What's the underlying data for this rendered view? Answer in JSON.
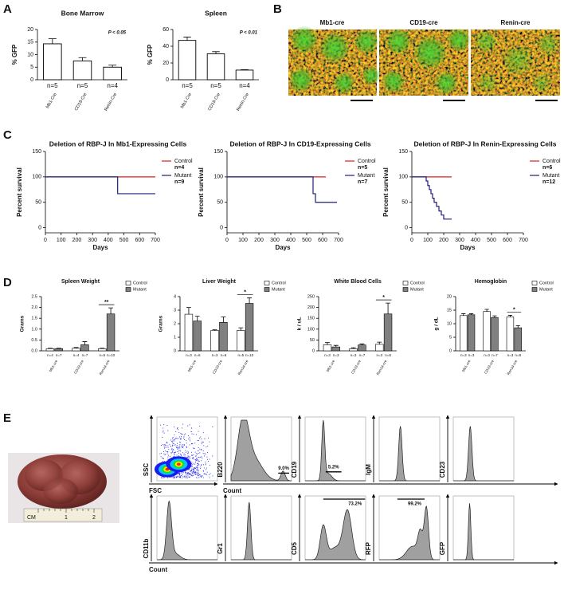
{
  "panel_labels": [
    "A",
    "B",
    "C",
    "D",
    "E"
  ],
  "micrographs": {
    "labels": [
      "Mb1-cre",
      "CD19-cre",
      "Renin-cre"
    ]
  },
  "specimen_photo": {
    "ruler_labels": [
      "CM",
      "1",
      "2"
    ]
  },
  "flow_cytometry": {
    "panels": [
      {
        "y_label": "SSC",
        "x_label": "FSC"
      },
      {
        "y_label": "B220",
        "x_label": "Count",
        "gate_label": "9.0%"
      },
      {
        "y_label": "CD19",
        "gate_label": "5.2%"
      },
      {
        "y_label": "IgM"
      },
      {
        "y_label": "CD23"
      },
      {
        "y_label": "CD11b",
        "x_label": "Count"
      },
      {
        "y_label": "Gr1"
      },
      {
        "y_label": "CD5",
        "gate_label": "73.2%"
      },
      {
        "y_label": "RFP",
        "gate_label": "99.2%"
      },
      {
        "y_label": "GFP"
      }
    ]
  },
  "chart_data": [
    {
      "type": "bar",
      "title": "Bone Marrow",
      "y_label": "% GFP",
      "annotation": "P < 0.05",
      "categories": [
        "Mb1-Cre",
        "CD19-Cre",
        "Renin-Cre"
      ],
      "values": [
        14.3,
        7.5,
        5.0
      ],
      "errors": [
        2.0,
        1.3,
        0.8
      ],
      "n_labels": [
        "n=5",
        "n=5",
        "n=4"
      ],
      "color": "#ffffff",
      "ylim": [
        0,
        20
      ],
      "yticks": [
        0,
        5,
        10,
        15,
        20
      ]
    },
    {
      "type": "bar",
      "title": "Spleen",
      "y_label": "% GFP",
      "annotation": "P < 0.01",
      "categories": [
        "Mb1-Cre",
        "CD19-Cre",
        "Renin-Cre"
      ],
      "values": [
        47,
        31,
        11.5
      ],
      "errors": [
        4,
        2.5,
        0.5
      ],
      "n_labels": [
        "n=5",
        "n=5",
        "n=4"
      ],
      "color": "#ffffff",
      "ylim": [
        0,
        60
      ],
      "yticks": [
        0,
        20,
        40,
        60
      ]
    },
    {
      "type": "line",
      "title": "Deletion of RBP-J In Mb1-Expressing Cells",
      "x_label": "Days",
      "y_label": "Percent survival",
      "xlim": [
        0,
        700
      ],
      "xticks": [
        0,
        100,
        200,
        300,
        400,
        500,
        600,
        700
      ],
      "ylim": [
        -10,
        150
      ],
      "yticks": [
        0,
        50,
        100,
        150
      ],
      "series": [
        {
          "name": "Control",
          "n": "n=4",
          "color": "#e41a1c",
          "x": [
            0,
            700
          ],
          "values": [
            100,
            100
          ]
        },
        {
          "name": "Mutant",
          "n": "n=9",
          "color": "#1f1f7a",
          "x": [
            0,
            460,
            460,
            700
          ],
          "values": [
            100,
            100,
            67,
            67
          ]
        }
      ]
    },
    {
      "type": "line",
      "title": "Deletion of RBP-J In CD19-Expressing Cells",
      "x_label": "Days",
      "y_label": "Percent survival",
      "xlim": [
        0,
        700
      ],
      "xticks": [
        0,
        100,
        200,
        300,
        400,
        500,
        600,
        700
      ],
      "ylim": [
        -10,
        150
      ],
      "yticks": [
        0,
        50,
        100,
        150
      ],
      "series": [
        {
          "name": "Control",
          "n": "n=5",
          "color": "#e41a1c",
          "x": [
            0,
            620
          ],
          "values": [
            100,
            100
          ]
        },
        {
          "name": "Mutant",
          "n": "n=7",
          "color": "#1f1f7a",
          "x": [
            0,
            540,
            540,
            555,
            555,
            690
          ],
          "values": [
            100,
            100,
            67,
            67,
            50,
            50
          ]
        }
      ]
    },
    {
      "type": "line",
      "title": "Deletion of RBP-J In Renin-Expressing Cells",
      "x_label": "Days",
      "y_label": "Percent survival",
      "xlim": [
        0,
        700
      ],
      "xticks": [
        0,
        100,
        200,
        300,
        400,
        500,
        600,
        700
      ],
      "ylim": [
        -10,
        150
      ],
      "yticks": [
        0,
        50,
        100,
        150
      ],
      "series": [
        {
          "name": "Control",
          "n": "n=6",
          "color": "#e41a1c",
          "x": [
            0,
            250
          ],
          "values": [
            100,
            100
          ]
        },
        {
          "name": "Mutant",
          "n": "n=12",
          "color": "#1f1f7a",
          "x": [
            0,
            90,
            90,
            100,
            100,
            110,
            110,
            120,
            120,
            130,
            130,
            140,
            140,
            155,
            155,
            170,
            170,
            185,
            185,
            200,
            200,
            250
          ],
          "values": [
            100,
            100,
            92,
            92,
            83,
            83,
            75,
            75,
            67,
            67,
            58,
            58,
            50,
            50,
            42,
            42,
            33,
            33,
            25,
            25,
            17,
            17
          ]
        }
      ]
    },
    {
      "type": "bar",
      "title": "Spleen Weight",
      "y_label": "Grams",
      "significance": "**",
      "categories": [
        "Mb1-cre",
        "CD19-cre",
        "Ren1d-cre"
      ],
      "ylim": [
        0,
        2.5
      ],
      "yticks": [
        {
          "value": 0,
          "label": "0.0"
        },
        0.5,
        {
          "value": 1,
          "label": "1.0"
        },
        1.5,
        {
          "value": 2,
          "label": "2.0"
        },
        2.5
      ],
      "series": [
        {
          "name": "Control",
          "color": "#ffffff",
          "values": [
            0.1,
            0.12,
            0.1
          ],
          "errors": [
            0.02,
            0.03,
            0.02
          ],
          "n_labels": [
            "n=4",
            "n=4",
            "n=5"
          ]
        },
        {
          "name": "Mutant",
          "color": "#808080",
          "values": [
            0.1,
            0.28,
            1.7
          ],
          "errors": [
            0.02,
            0.14,
            0.28
          ],
          "n_labels": [
            "n=7",
            "n=7",
            "n=10"
          ]
        }
      ]
    },
    {
      "type": "bar",
      "title": "Liver Weight",
      "y_label": "Grams",
      "significance": "*",
      "categories": [
        "Mb1-cre",
        "CD19-cre",
        "Ren1d-cre"
      ],
      "ylim": [
        0,
        4
      ],
      "yticks": [
        0,
        1,
        2,
        3,
        4
      ],
      "series": [
        {
          "name": "Control",
          "color": "#ffffff",
          "values": [
            2.7,
            1.5,
            1.5
          ],
          "errors": [
            0.5,
            0.05,
            0.2
          ],
          "n_labels": [
            "n=3",
            "n=3",
            "n=5"
          ]
        },
        {
          "name": "Mutant",
          "color": "#808080",
          "values": [
            2.2,
            2.1,
            3.5
          ],
          "errors": [
            0.35,
            0.4,
            0.4
          ],
          "n_labels": [
            "n=6",
            "n=6",
            "n=10"
          ]
        }
      ]
    },
    {
      "type": "bar",
      "title": "White Blood Cells",
      "y_label": "k / uL",
      "significance": "*",
      "categories": [
        "Mb1-cre",
        "CD19-cre",
        "Ren1d-cre"
      ],
      "ylim": [
        0,
        250
      ],
      "yticks": [
        0,
        50,
        100,
        150,
        200,
        250
      ],
      "series": [
        {
          "name": "Control",
          "color": "#ffffff",
          "values": [
            28,
            10,
            30
          ],
          "errors": [
            10,
            4,
            10
          ],
          "n_labels": [
            "n=3",
            "n=3",
            "n=3"
          ]
        },
        {
          "name": "Mutant",
          "color": "#808080",
          "values": [
            18,
            27,
            170
          ],
          "errors": [
            7,
            5,
            50
          ],
          "n_labels": [
            "n=3",
            "n=7",
            "n=8"
          ]
        }
      ]
    },
    {
      "type": "bar",
      "title": "Hemoglobin",
      "y_label": "g / dL",
      "significance": "*",
      "categories": [
        "Mb1-cre",
        "CD19-cre",
        "Ren1d-cre"
      ],
      "ylim": [
        0,
        20
      ],
      "yticks": [
        0,
        5,
        10,
        15,
        20
      ],
      "series": [
        {
          "name": "Control",
          "color": "#ffffff",
          "values": [
            13,
            14.5,
            12.5
          ],
          "errors": [
            0.7,
            0.8,
            0.6
          ],
          "n_labels": [
            "n=3",
            "n=3",
            "n=3"
          ]
        },
        {
          "name": "Mutant",
          "color": "#808080",
          "values": [
            13.3,
            12.3,
            8.5
          ],
          "errors": [
            0.4,
            0.6,
            0.8
          ],
          "n_labels": [
            "n=3",
            "n=7",
            "n=8"
          ]
        }
      ]
    }
  ]
}
